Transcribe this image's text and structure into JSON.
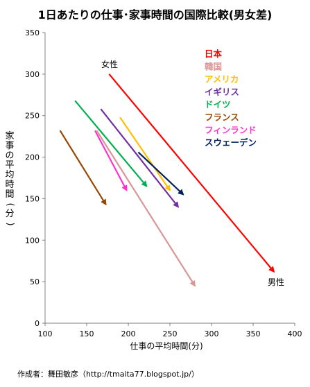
{
  "chart_data": {
    "type": "scatter",
    "title": "1日あたりの仕事･家事時間の国際比較(男女差)",
    "xlabel": "仕事の平均時間(分)",
    "ylabel": "家事の平均時間(分)",
    "xlim": [
      100,
      400
    ],
    "ylim": [
      0,
      350
    ],
    "xticks": [
      100,
      150,
      200,
      250,
      300,
      350,
      400
    ],
    "yticks": [
      0,
      50,
      100,
      150,
      200,
      250,
      300,
      350
    ],
    "grid": false,
    "legend_placement": "top-right",
    "annotations": {
      "female": "女性",
      "male": "男性"
    },
    "series": [
      {
        "name": "日本",
        "color": "#ff0000",
        "female": [
          177,
          300
        ],
        "male": [
          375,
          62
        ]
      },
      {
        "name": "韓国",
        "color": "#d99694",
        "female": [
          162,
          232
        ],
        "male": [
          280,
          45
        ]
      },
      {
        "name": "アメリカ",
        "color": "#ffc000",
        "female": [
          190,
          248
        ],
        "male": [
          250,
          160
        ]
      },
      {
        "name": "イギリス",
        "color": "#7030a0",
        "female": [
          167,
          258
        ],
        "male": [
          260,
          140
        ]
      },
      {
        "name": "ドイツ",
        "color": "#00b050",
        "female": [
          136,
          268
        ],
        "male": [
          222,
          165
        ]
      },
      {
        "name": "フランス",
        "color": "#984807",
        "female": [
          118,
          232
        ],
        "male": [
          173,
          143
        ]
      },
      {
        "name": "フィンランド",
        "color": "#ff33cc",
        "female": [
          160,
          232
        ],
        "male": [
          198,
          160
        ]
      },
      {
        "name": "スウェーデン",
        "color": "#002060",
        "female": [
          212,
          206
        ],
        "male": [
          266,
          155
        ]
      }
    ]
  },
  "credit": "作成者：舞田敏彦（http://tmaita77.blogspot.jp/）"
}
